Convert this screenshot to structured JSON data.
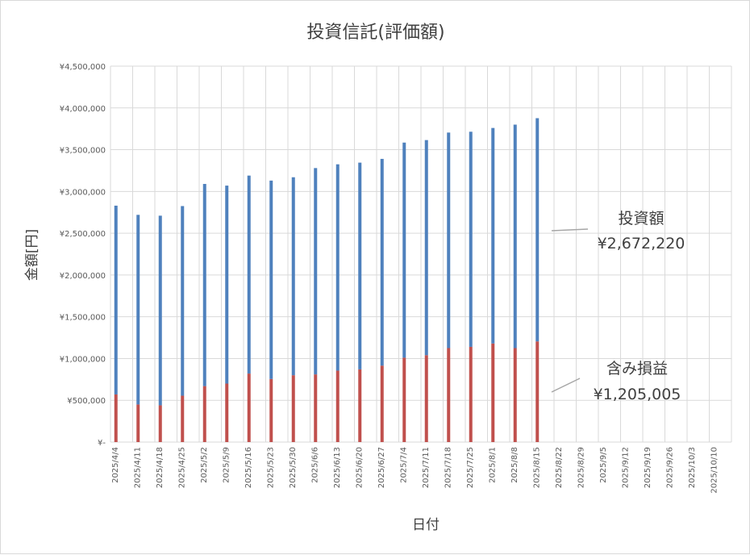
{
  "chart_data": {
    "type": "bar",
    "stacked": true,
    "title": "投資信託(評価額)",
    "xlabel": "日付",
    "ylabel": "金額[円]",
    "ylim": [
      0,
      4500000
    ],
    "y_ticks": [
      0,
      500000,
      1000000,
      1500000,
      2000000,
      2500000,
      3000000,
      3500000,
      4000000,
      4500000
    ],
    "y_tick_labels": [
      "¥-",
      "¥500,000",
      "¥1,000,000",
      "¥1,500,000",
      "¥2,000,000",
      "¥2,500,000",
      "¥3,000,000",
      "¥3,500,000",
      "¥4,000,000",
      "¥4,500,000"
    ],
    "grid": true,
    "categories": [
      "2025/4/4",
      "2025/4/11",
      "2025/4/18",
      "2025/4/25",
      "2025/5/2",
      "2025/5/9",
      "2025/5/16",
      "2025/5/23",
      "2025/5/30",
      "2025/6/6",
      "2025/6/13",
      "2025/6/20",
      "2025/6/27",
      "2025/7/4",
      "2025/7/11",
      "2025/7/18",
      "2025/7/25",
      "2025/8/1",
      "2025/8/8",
      "2025/8/15",
      "2025/8/22",
      "2025/8/29",
      "2025/9/5",
      "2025/9/12",
      "2025/9/19",
      "2025/9/26",
      "2025/10/3",
      "2025/10/10"
    ],
    "series": [
      {
        "name": "含み損益",
        "color": "#c0504d",
        "values": [
          570000,
          450000,
          440000,
          555000,
          670000,
          700000,
          820000,
          755000,
          800000,
          810000,
          855000,
          870000,
          915000,
          1010000,
          1040000,
          1125000,
          1140000,
          1180000,
          1125000,
          1205005,
          null,
          null,
          null,
          null,
          null,
          null,
          null,
          null
        ]
      },
      {
        "name": "投資額",
        "color": "#4f81bd",
        "values": [
          2260000,
          2270000,
          2270000,
          2270000,
          2420000,
          2370000,
          2370000,
          2375000,
          2370000,
          2470000,
          2470000,
          2475000,
          2475000,
          2575000,
          2575000,
          2580000,
          2575000,
          2580000,
          2675000,
          2672220,
          null,
          null,
          null,
          null,
          null,
          null,
          null,
          null
        ]
      }
    ],
    "annotations": [
      {
        "series": "投資額",
        "label": "投資額",
        "value": "¥2,672,220"
      },
      {
        "series": "含み損益",
        "label": "含み損益",
        "value": "¥1,205,005"
      }
    ]
  }
}
